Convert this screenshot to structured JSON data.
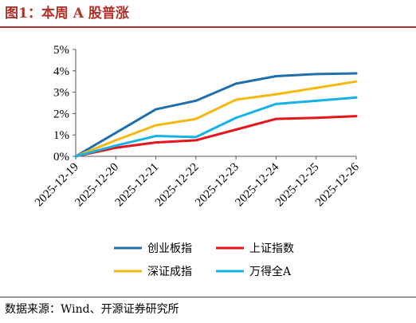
{
  "header": {
    "title": "图1：本周 A 股普涨"
  },
  "footer": {
    "source": "数据来源：Wind、开源证券研究所"
  },
  "chart_data": {
    "type": "line",
    "title": "",
    "xlabel": "",
    "ylabel": "",
    "x": [
      "2025-12-19",
      "2025-12-20",
      "2025-12-21",
      "2025-12-22",
      "2025-12-23",
      "2025-12-24",
      "2025-12-25",
      "2025-12-26"
    ],
    "ylim": [
      0,
      5
    ],
    "yticks": [
      0,
      1,
      2,
      3,
      4,
      5
    ],
    "ytick_labels": [
      "0%",
      "1%",
      "2%",
      "3%",
      "4%",
      "5%"
    ],
    "grid": false,
    "legend_position": "bottom",
    "series": [
      {
        "name": "创业板指",
        "color": "#1f6fae",
        "values": [
          0,
          1.1,
          2.2,
          2.6,
          3.4,
          3.75,
          3.85,
          3.88
        ]
      },
      {
        "name": "上证指数",
        "color": "#e8141c",
        "values": [
          0,
          0.4,
          0.65,
          0.75,
          1.25,
          1.75,
          1.8,
          1.88
        ]
      },
      {
        "name": "深证成指",
        "color": "#f5b80e",
        "values": [
          0,
          0.75,
          1.45,
          1.75,
          2.65,
          2.9,
          3.2,
          3.5
        ]
      },
      {
        "name": "万得全A",
        "color": "#16b2e6",
        "values": [
          0,
          0.5,
          0.95,
          0.9,
          1.8,
          2.45,
          2.6,
          2.75
        ]
      }
    ]
  }
}
